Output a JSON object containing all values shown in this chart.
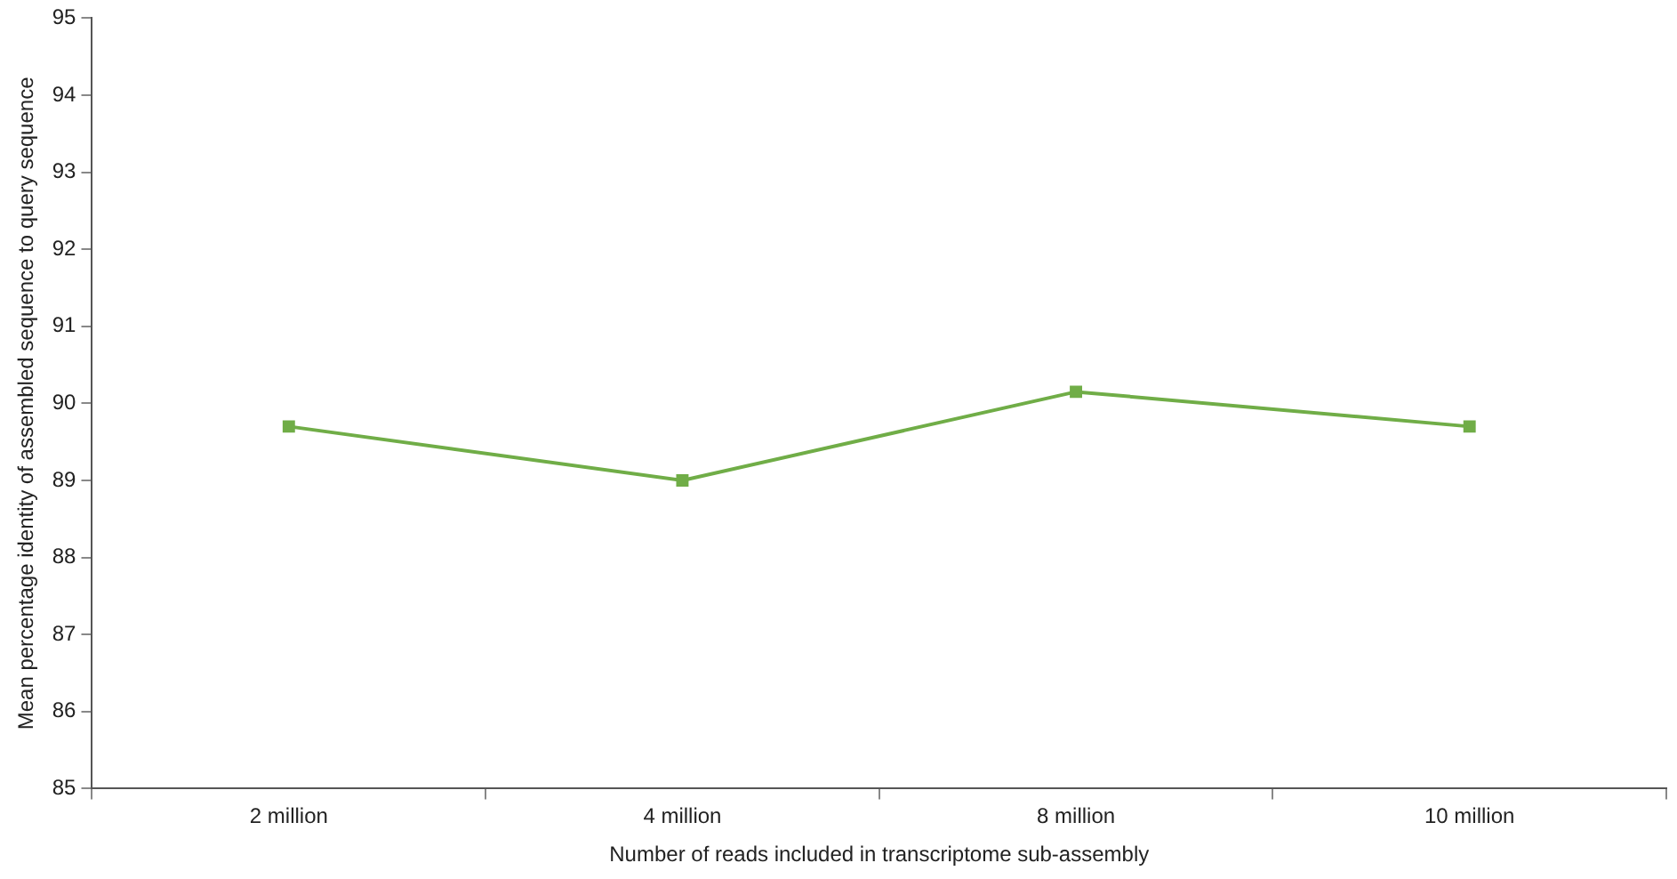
{
  "chart_data": {
    "type": "line",
    "xlabel": "Number of reads included in transcriptome sub-assembly",
    "ylabel": "Mean percentage identity of assembled sequence to query sequence",
    "categories": [
      "2 million",
      "4 million",
      "8 million",
      "10 million"
    ],
    "series": [
      {
        "color": "#70ad47",
        "values": [
          89.7,
          89.0,
          90.15,
          89.7
        ]
      }
    ],
    "ylim": [
      85,
      95
    ],
    "yticks": [
      85,
      86,
      87,
      88,
      89,
      90,
      91,
      92,
      93,
      94,
      95
    ],
    "grid": false,
    "legend": false,
    "marker": "square",
    "line_style": "solid"
  }
}
